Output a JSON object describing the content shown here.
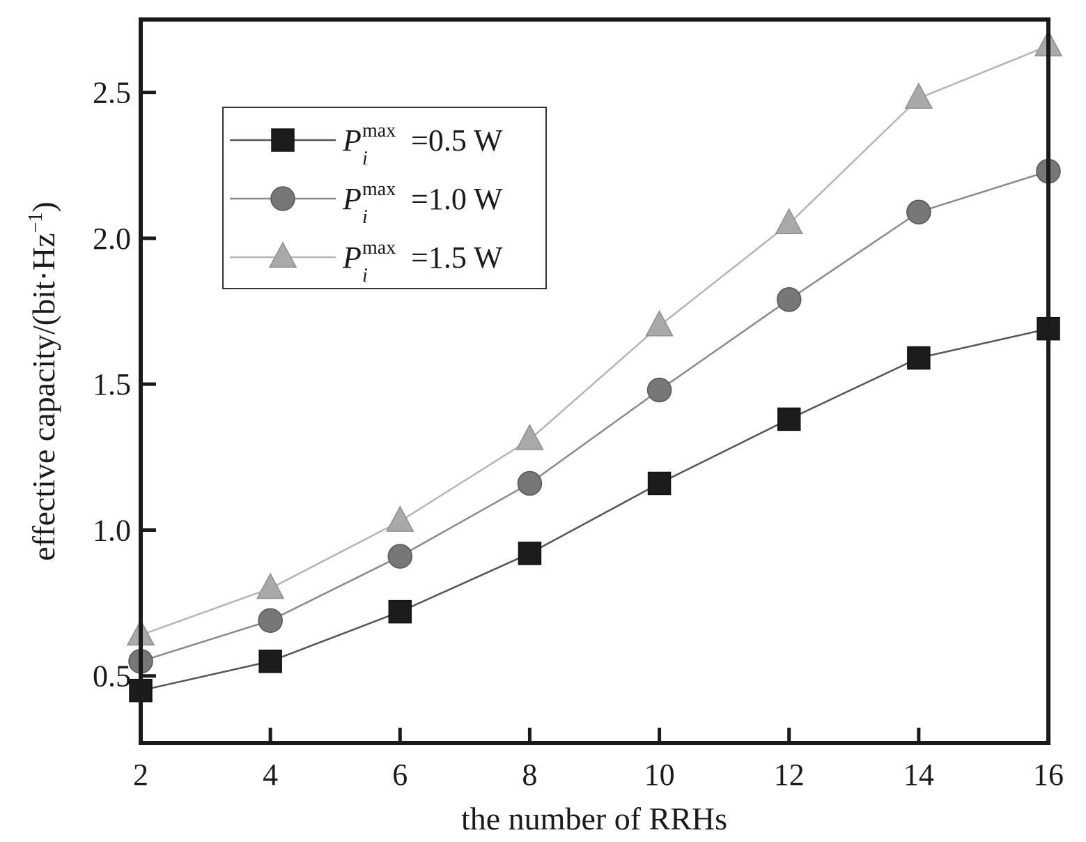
{
  "chart_data": {
    "type": "line",
    "title": "",
    "xlabel": "the number of RRHs",
    "ylabel": "effective capacity/(bit·Hz",
    "ylabel_sup": "−1",
    "ylabel_close": ")",
    "xlim": [
      2,
      16
    ],
    "ylim": [
      0.27,
      2.75
    ],
    "x_ticks": [
      2,
      4,
      6,
      8,
      10,
      12,
      14,
      16
    ],
    "y_ticks": [
      0.5,
      1.0,
      1.5,
      2.0,
      2.5
    ],
    "y_tick_labels": [
      "0.5",
      "1.0",
      "1.5",
      "2.0",
      "2.5"
    ],
    "grid": false,
    "legend_position": "top-left",
    "x": [
      2,
      4,
      6,
      8,
      10,
      12,
      14,
      16
    ],
    "series": [
      {
        "symbol": "P",
        "sub": "i",
        "sup": "max",
        "value_text": "=0.5 W",
        "marker": "square",
        "color": "#1c1c1c",
        "line_color": "#555555",
        "values": [
          0.45,
          0.55,
          0.72,
          0.92,
          1.16,
          1.38,
          1.59,
          1.69
        ]
      },
      {
        "symbol": "P",
        "sub": "i",
        "sup": "max",
        "value_text": "=1.0 W",
        "marker": "circle",
        "color": "#777777",
        "line_color": "#8a8a8a",
        "values": [
          0.55,
          0.69,
          0.91,
          1.16,
          1.48,
          1.79,
          2.09,
          2.23
        ]
      },
      {
        "symbol": "P",
        "sub": "i",
        "sup": "max",
        "value_text": "=1.5 W",
        "marker": "triangle",
        "color": "#a9a9a9",
        "line_color": "#b5b5b5",
        "values": [
          0.64,
          0.8,
          1.03,
          1.31,
          1.7,
          2.05,
          2.48,
          2.66
        ]
      }
    ]
  }
}
